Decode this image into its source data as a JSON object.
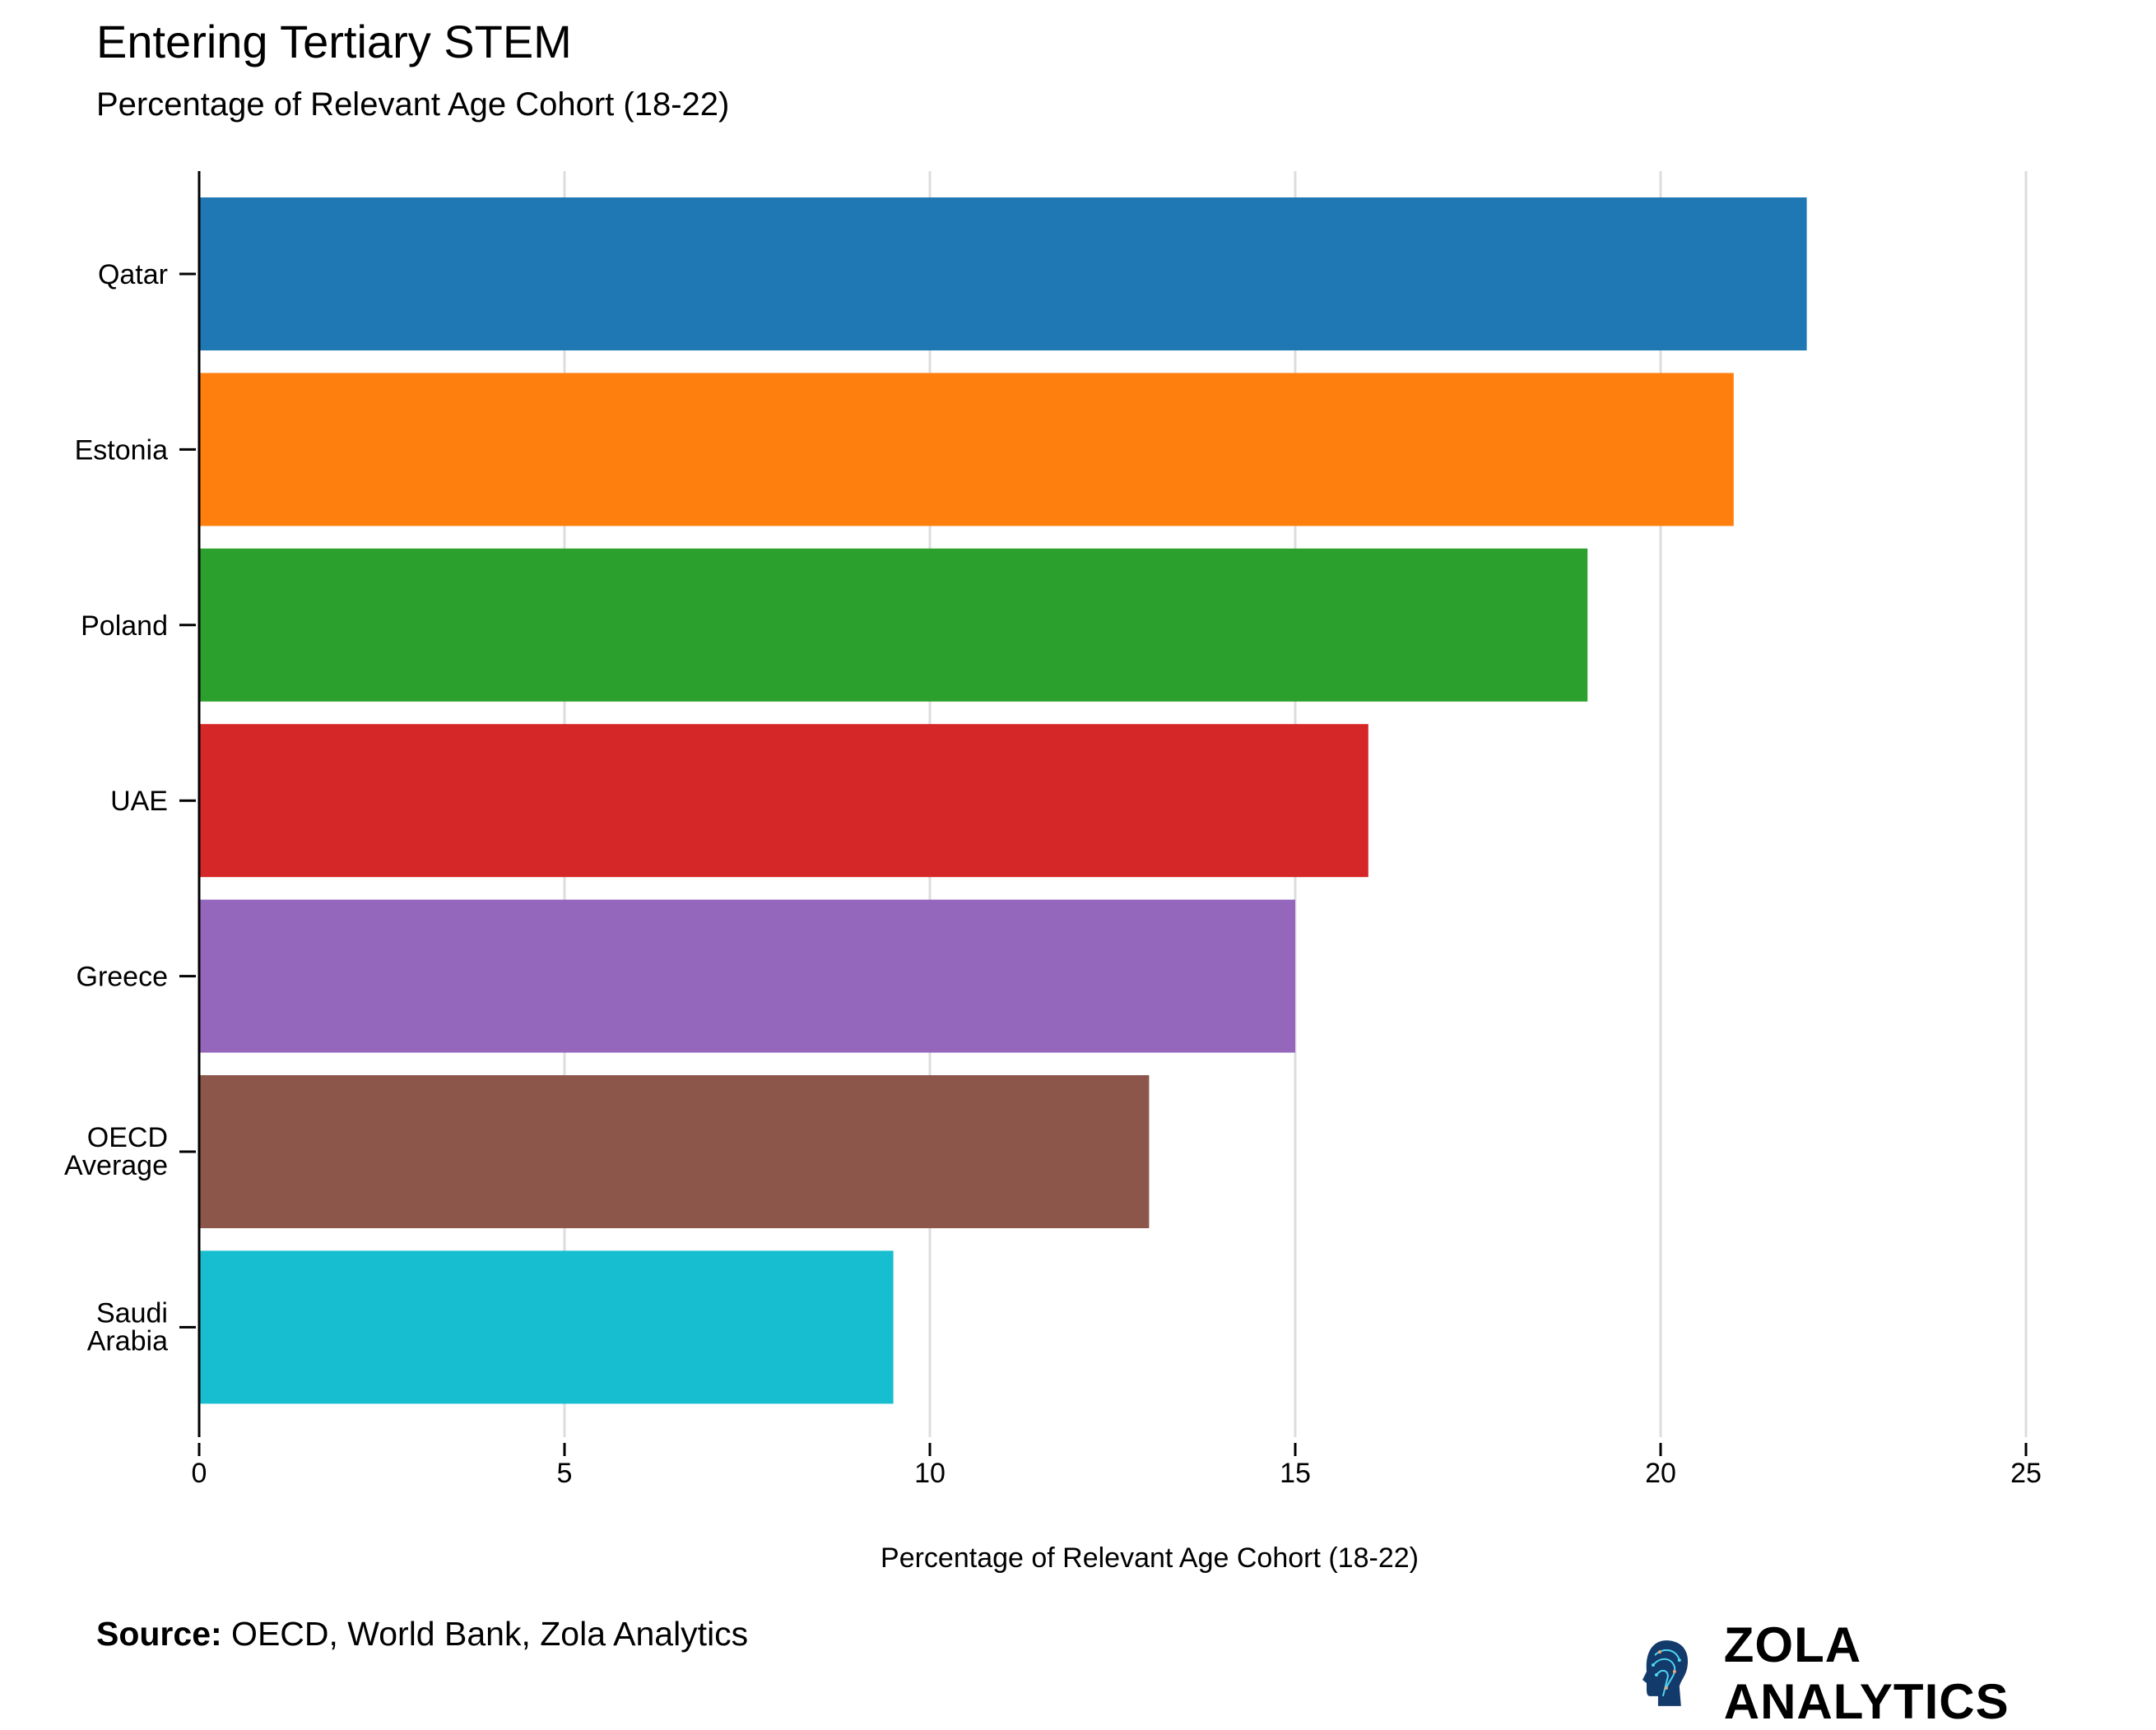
{
  "chart_data": {
    "type": "bar",
    "orientation": "horizontal",
    "title": "Entering Tertiary STEM",
    "subtitle": "Percentage of Relevant Age Cohort (18-22)",
    "xlabel": "Percentage of Relevant Age Cohort (18-22)",
    "ylabel": "",
    "categories": [
      "Qatar",
      "Estonia",
      "Poland",
      "UAE",
      "Greece",
      "OECD Average",
      "Saudi Arabia"
    ],
    "values": [
      22,
      21,
      19,
      16,
      15,
      13,
      9.5
    ],
    "colors": [
      "#1f77b4",
      "#ff7f0e",
      "#2ca02c",
      "#d62728",
      "#9467bd",
      "#8c564b",
      "#17becf"
    ],
    "xlim": [
      0,
      25
    ],
    "xticks": [
      "0",
      "5",
      "10",
      "15",
      "20",
      "25"
    ],
    "grid": "vertical",
    "legend": "none"
  },
  "footer": {
    "source_label": "Source:",
    "source_text": " OECD, World Bank, Zola Analytics",
    "brand": "ZOLA ANALYTICS"
  }
}
